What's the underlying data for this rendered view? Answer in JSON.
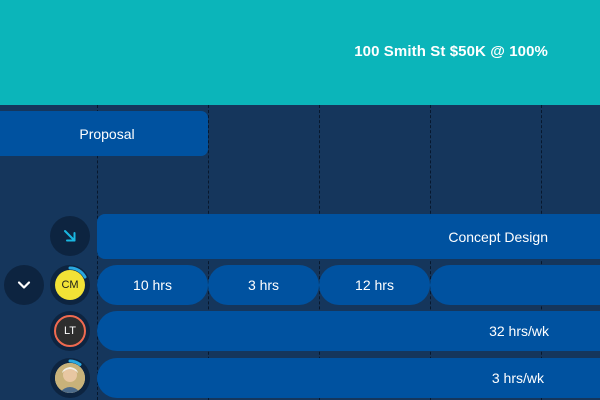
{
  "header": {
    "title": "100 Smith St $50K @ 100%",
    "bg_color": "#0bb5ba"
  },
  "phases": [
    {
      "label": "Proposal"
    },
    {
      "label": "Concept Design",
      "icon": "arrow-down-right-icon"
    }
  ],
  "hours": [
    "10 hrs",
    "3 hrs",
    "12 hrs",
    ""
  ],
  "people": [
    {
      "initials": "CM",
      "avatar_color": "#f2e236",
      "allocation": ""
    },
    {
      "initials": "LT",
      "avatar_color": "#2e2e2e",
      "ring_color": "#f06a50",
      "allocation": "32 hrs/wk"
    },
    {
      "initials": "",
      "avatar": "photo",
      "allocation": "3 hrs/wk"
    }
  ],
  "colors": {
    "background": "#15365c",
    "bar": "#0052a0",
    "accent": "#0bb5ba",
    "progress_ring": "#29a8e0"
  }
}
